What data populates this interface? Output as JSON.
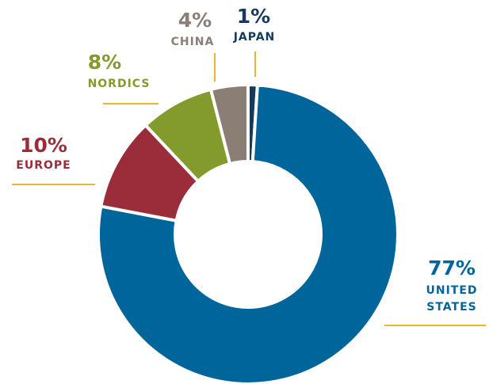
{
  "chart_data": {
    "type": "donut",
    "categories": [
      "JAPAN",
      "UNITED STATES",
      "EUROPE",
      "NORDICS",
      "CHINA"
    ],
    "values": [
      1,
      77,
      10,
      8,
      4
    ],
    "value_labels": [
      "1%",
      "77%",
      "10%",
      "8%",
      "4%"
    ],
    "colors": [
      "#163a5e",
      "#00659b",
      "#9b2c3a",
      "#839a2d",
      "#8a7e75"
    ]
  }
}
